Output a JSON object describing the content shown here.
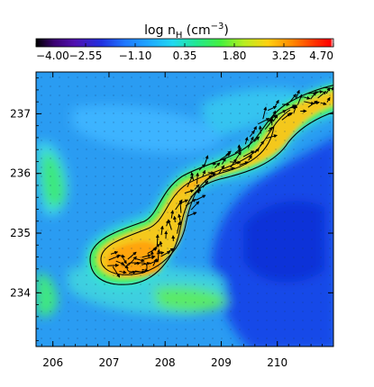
{
  "chart_data": {
    "type": "heatmap",
    "colorbar": {
      "title_main": "log n",
      "title_sub": "H",
      "title_units": " (cm",
      "title_sup": "−3",
      "title_end": ")",
      "min": -4.0,
      "max": 4.7,
      "tick_values": [
        -4.0,
        -2.55,
        -1.1,
        0.35,
        1.8,
        3.25,
        4.7
      ],
      "tick_labels": [
        "−4.00",
        "−2.55",
        "−1.10",
        "0.35",
        "1.80",
        "3.25",
        "4.70"
      ],
      "colormap": "rainbow"
    },
    "x_axis": {
      "range": [
        205.7,
        211.0
      ],
      "ticks": [
        206,
        207,
        208,
        209,
        210
      ],
      "tick_labels": [
        "206",
        "207",
        "208",
        "209",
        "210"
      ]
    },
    "y_axis": {
      "range": [
        233.1,
        237.7
      ],
      "ticks": [
        234,
        235,
        236,
        237
      ],
      "tick_labels": [
        "234",
        "235",
        "236",
        "237"
      ]
    },
    "filament_ridge": [
      [
        207.0,
        234.55
      ],
      [
        207.35,
        234.45
      ],
      [
        207.7,
        234.5
      ],
      [
        207.95,
        234.75
      ],
      [
        208.2,
        235.2
      ],
      [
        208.45,
        235.6
      ],
      [
        208.65,
        235.95
      ],
      [
        209.0,
        236.15
      ],
      [
        209.4,
        236.3
      ],
      [
        209.7,
        236.65
      ],
      [
        209.9,
        236.95
      ],
      [
        210.25,
        237.1
      ],
      [
        210.6,
        237.25
      ],
      [
        211.0,
        237.35
      ]
    ],
    "contours": [
      "outer",
      "inner",
      "core"
    ],
    "vector_field": true,
    "grid": false,
    "legend": "none"
  }
}
